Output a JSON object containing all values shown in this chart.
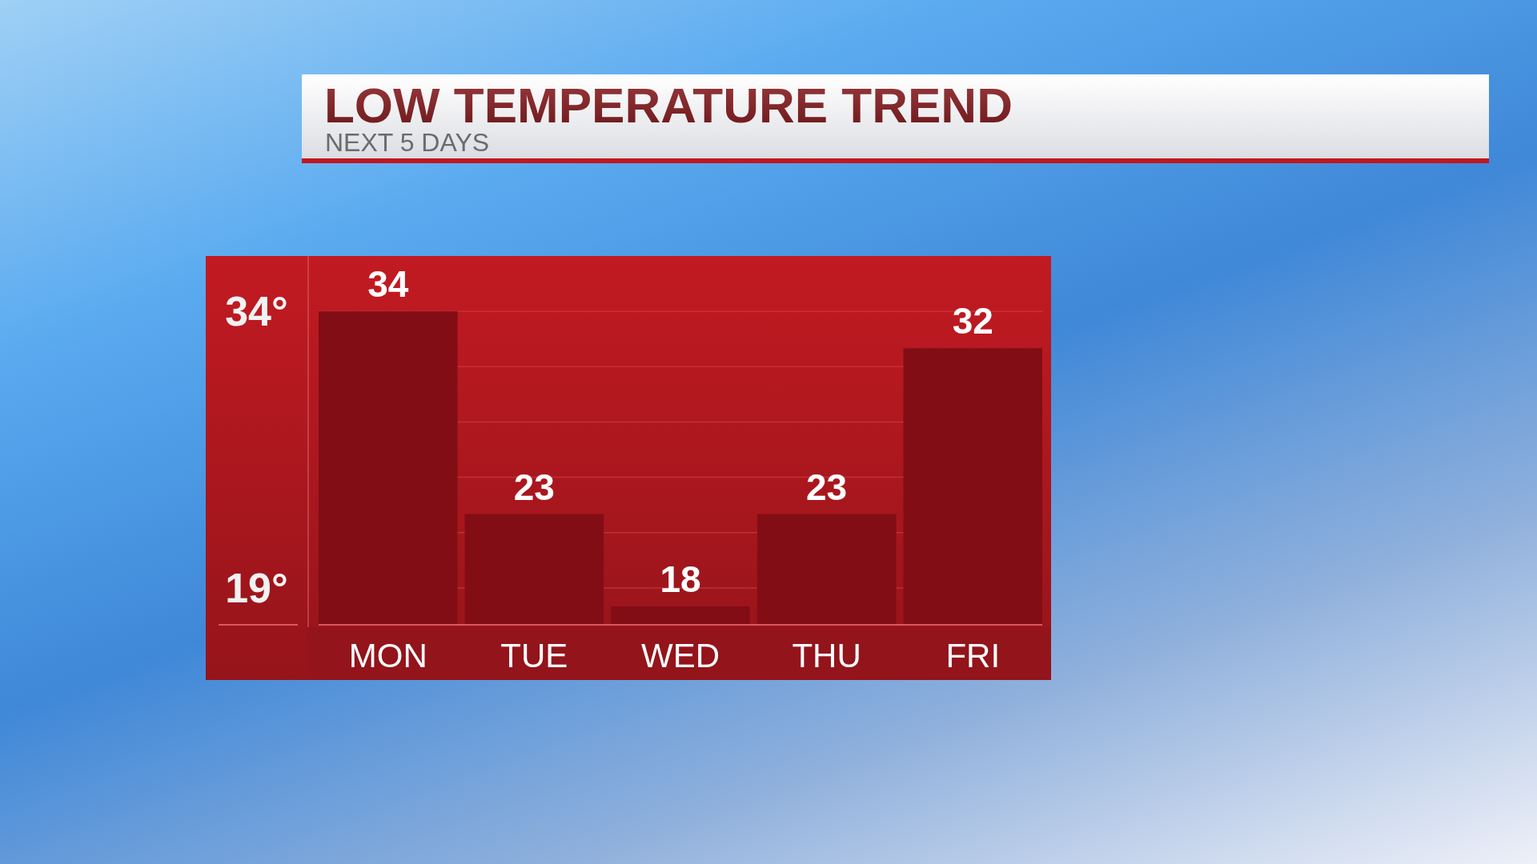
{
  "chart_data": {
    "type": "bar",
    "title": "LOW TEMPERATURE TREND",
    "subtitle": "NEXT 5 DAYS",
    "categories": [
      "MON",
      "TUE",
      "WED",
      "THU",
      "FRI"
    ],
    "values": [
      34,
      23,
      18,
      23,
      32
    ],
    "color": "#820d15",
    "ylim": [
      17,
      37
    ],
    "yticks": [
      {
        "value": 19,
        "label": "19°"
      },
      {
        "value": 22,
        "label": null
      },
      {
        "value": 25,
        "label": null
      },
      {
        "value": 28,
        "label": null
      },
      {
        "value": 31,
        "label": null
      },
      {
        "value": 34,
        "label": "34°"
      }
    ],
    "grid": "y",
    "data_labels": true
  }
}
